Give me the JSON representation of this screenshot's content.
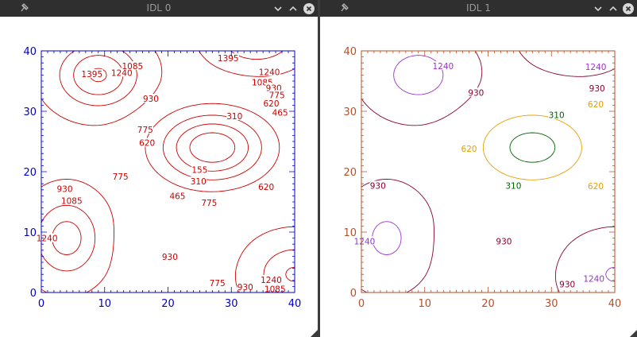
{
  "windows": [
    {
      "title": "IDL 0",
      "axis_color": "#0000cc",
      "contour_color": "#cc0000",
      "chart_data": {
        "type": "contour",
        "xlim": [
          0,
          40
        ],
        "ylim": [
          0,
          40
        ],
        "x_ticks": [
          "0",
          "10",
          "20",
          "30",
          "40"
        ],
        "y_ticks": [
          "0",
          "10",
          "20",
          "30",
          "40"
        ],
        "levels": [
          155,
          310,
          465,
          620,
          775,
          930,
          1085,
          1240,
          1395
        ],
        "level_labels": [
          {
            "text": "1395",
            "x": 8,
            "y": 36.2
          },
          {
            "text": "1240",
            "x": 12.7,
            "y": 36.4
          },
          {
            "text": "1085",
            "x": 14.4,
            "y": 37.5
          },
          {
            "text": "930",
            "x": 17.3,
            "y": 32.1
          },
          {
            "text": "775",
            "x": 16.4,
            "y": 27.0
          },
          {
            "text": "620",
            "x": 16.7,
            "y": 24.8
          },
          {
            "text": "310",
            "x": 30.5,
            "y": 29.2
          },
          {
            "text": "465",
            "x": 37.7,
            "y": 29.8
          },
          {
            "text": "155",
            "x": 25.0,
            "y": 20.3
          },
          {
            "text": "310",
            "x": 24.8,
            "y": 18.4
          },
          {
            "text": "620",
            "x": 35.5,
            "y": 17.5
          },
          {
            "text": "465",
            "x": 21.5,
            "y": 16.0
          },
          {
            "text": "775",
            "x": 26.5,
            "y": 14.9
          },
          {
            "text": "775",
            "x": 12.5,
            "y": 19.2
          },
          {
            "text": "930",
            "x": 3.7,
            "y": 17.2
          },
          {
            "text": "1085",
            "x": 4.8,
            "y": 15.2
          },
          {
            "text": "930",
            "x": 20.3,
            "y": 5.9
          },
          {
            "text": "1240",
            "x": 36.3,
            "y": 2.1
          },
          {
            "text": "775",
            "x": 27.8,
            "y": 1.6
          },
          {
            "text": "930",
            "x": 32.2,
            "y": 0.9
          },
          {
            "text": "1085",
            "x": 36.9,
            "y": 0.6
          },
          {
            "text": "1395",
            "x": 29.5,
            "y": 38.8
          },
          {
            "text": "1240",
            "x": 36.0,
            "y": 36.5
          },
          {
            "text": "1085",
            "x": 34.9,
            "y": 34.8
          },
          {
            "text": "930",
            "x": 36.7,
            "y": 33.9
          },
          {
            "text": "775",
            "x": 37.2,
            "y": 32.7
          },
          {
            "text": "620",
            "x": 36.3,
            "y": 31.3
          },
          {
            "text": "1240",
            "x": 0.9,
            "y": 9.0
          }
        ]
      }
    },
    {
      "title": "IDL 1",
      "axis_color": "#b0522a",
      "chart_data": {
        "type": "contour",
        "xlim": [
          0,
          40
        ],
        "ylim": [
          0,
          40
        ],
        "x_ticks": [
          "0",
          "10",
          "20",
          "30",
          "40"
        ],
        "y_ticks": [
          "0",
          "10",
          "20",
          "30",
          "40"
        ],
        "levels": [
          310,
          620,
          930,
          1240
        ],
        "level_colors": {
          "310": "#006400",
          "620": "#e8a000",
          "930": "#8b0030",
          "1240": "#9933cc"
        },
        "level_labels": [
          {
            "text": "1240",
            "x": 12.9,
            "y": 37.5,
            "level": "1240"
          },
          {
            "text": "930",
            "x": 18.1,
            "y": 33.1,
            "level": "930"
          },
          {
            "text": "620",
            "x": 17.0,
            "y": 23.8,
            "level": "620"
          },
          {
            "text": "310",
            "x": 30.8,
            "y": 29.4,
            "level": "310"
          },
          {
            "text": "310",
            "x": 24.0,
            "y": 17.7,
            "level": "310"
          },
          {
            "text": "620",
            "x": 37.0,
            "y": 17.6,
            "level": "620"
          },
          {
            "text": "620",
            "x": 37.0,
            "y": 31.2,
            "level": "620"
          },
          {
            "text": "930",
            "x": 37.2,
            "y": 33.8,
            "level": "930"
          },
          {
            "text": "1240",
            "x": 37.0,
            "y": 37.4,
            "level": "1240"
          },
          {
            "text": "930",
            "x": 2.6,
            "y": 17.7,
            "level": "930"
          },
          {
            "text": "930",
            "x": 22.5,
            "y": 8.5,
            "level": "930"
          },
          {
            "text": "930",
            "x": 32.5,
            "y": 1.4,
            "level": "930"
          },
          {
            "text": "1240",
            "x": 36.7,
            "y": 2.3,
            "level": "1240"
          },
          {
            "text": "1240",
            "x": 0.5,
            "y": 8.5,
            "level": "1240"
          }
        ]
      }
    }
  ]
}
